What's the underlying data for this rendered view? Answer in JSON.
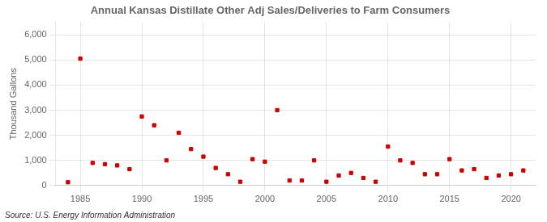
{
  "chart_data": {
    "type": "scatter",
    "title": "Annual Kansas Distillate Other Adj Sales/Deliveries to Farm Consumers",
    "ylabel": "Thousand Gallons",
    "annotations": [
      "Source: U.S. Energy Information Administration"
    ],
    "x": [
      1984,
      1985,
      1986,
      1987,
      1988,
      1989,
      1990,
      1991,
      1992,
      1993,
      1994,
      1995,
      1996,
      1997,
      1998,
      1999,
      2000,
      2001,
      2002,
      2003,
      2004,
      2005,
      2006,
      2007,
      2008,
      2009,
      2010,
      2011,
      2012,
      2013,
      2014,
      2015,
      2016,
      2017,
      2018,
      2019,
      2020,
      2021
    ],
    "values": [
      130,
      5050,
      900,
      850,
      800,
      650,
      2750,
      2400,
      1000,
      2100,
      1450,
      1150,
      700,
      450,
      150,
      1050,
      950,
      3000,
      200,
      200,
      1000,
      150,
      400,
      500,
      300,
      150,
      1550,
      1000,
      900,
      450,
      450,
      1050,
      600,
      650,
      300,
      400,
      450,
      600
    ],
    "color": "#cc0000",
    "marker": "square",
    "xlim": [
      1983,
      2022
    ],
    "xticks": [
      1985,
      1990,
      1995,
      2000,
      2005,
      2010,
      2015,
      2020
    ],
    "ylim": [
      0,
      6500
    ],
    "yticks": [
      0,
      {
        "value": 1000,
        "label": "1,000"
      },
      {
        "value": 2000,
        "label": "2,000"
      },
      {
        "value": 3000,
        "label": "3,000"
      },
      {
        "value": 4000,
        "label": "4,000"
      },
      {
        "value": 5000,
        "label": "5,000"
      },
      {
        "value": 6000,
        "label": "6,000"
      }
    ],
    "grid": true
  }
}
